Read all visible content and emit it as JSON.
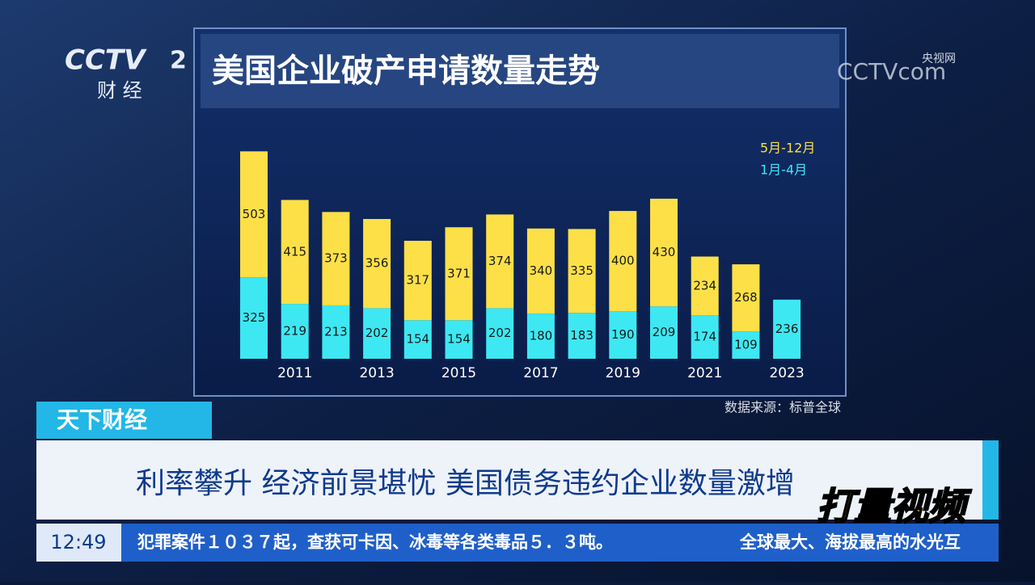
{
  "logo_left": {
    "brand": "CCTV",
    "channel": "2",
    "name": "财 经"
  },
  "logo_right": {
    "site": "央视网",
    "brand": "CCTVcom"
  },
  "chart_data": {
    "type": "stacked_bar",
    "title": "美国企业破产申请数量走势",
    "categories": [
      null,
      "2011",
      null,
      "2013",
      null,
      "2015",
      null,
      "2017",
      null,
      "2019",
      null,
      "2021",
      null,
      "2023"
    ],
    "series": [
      {
        "name": "1月-4月",
        "color": "#3de8f2",
        "values": [
          325,
          219,
          213,
          202,
          154,
          154,
          202,
          180,
          183,
          190,
          209,
          174,
          109,
          236
        ]
      },
      {
        "name": "5月-12月",
        "color": "#fde047",
        "values": [
          503,
          415,
          373,
          356,
          317,
          371,
          374,
          340,
          335,
          400,
          430,
          234,
          268,
          null
        ]
      }
    ],
    "source": "数据来源：标普全球"
  },
  "program": "天下财经",
  "headline": "利率攀升 经济前景堪忧 美国债务违约企业数量激增",
  "clock": "12:49",
  "ticker": "犯罪案件１０３７起，查获可卡因、冰毒等各类毒品５．３吨。",
  "ticker_next": "全球最大、海拔最高的水光互",
  "watermark": "打量视频"
}
